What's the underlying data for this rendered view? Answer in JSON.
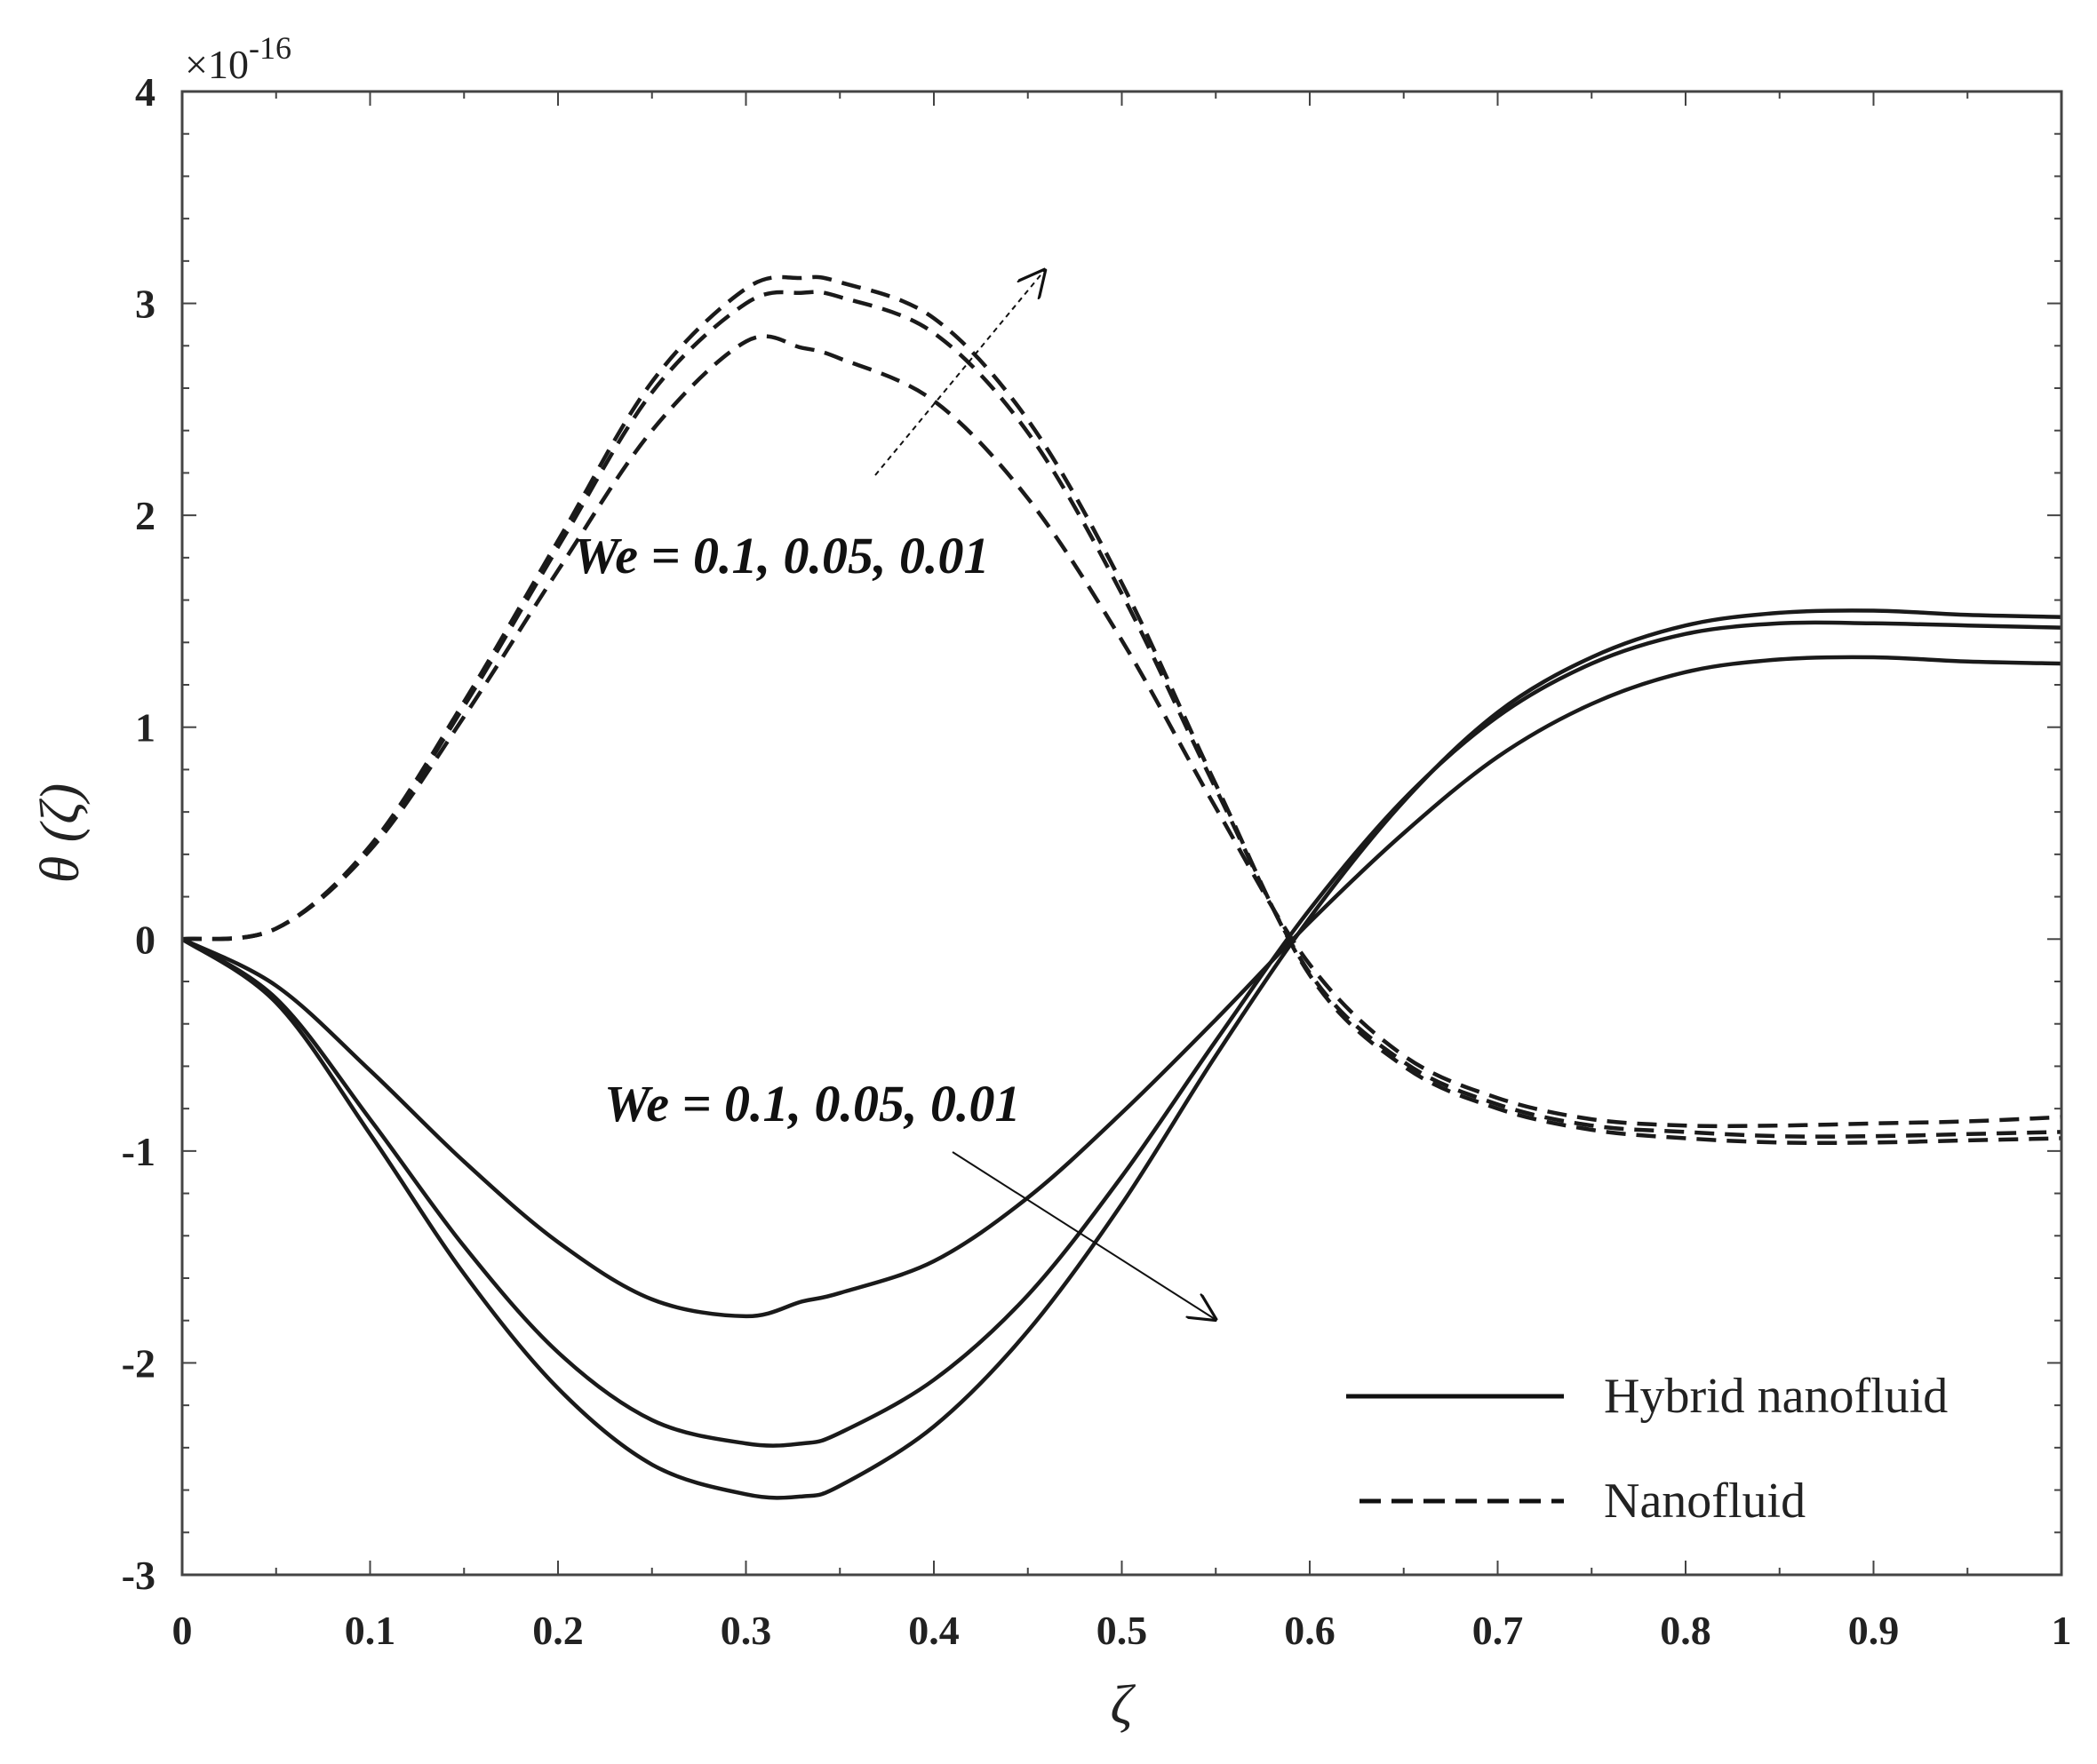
{
  "chart_data": {
    "type": "line",
    "title": "",
    "xlabel": "ζ",
    "ylabel": "θ (ζ)",
    "y_multiplier_label": "×10",
    "y_multiplier_exponent": "-16",
    "xlim": [
      0,
      1
    ],
    "ylim": [
      -3,
      4
    ],
    "xticks": [
      "0",
      "0.1",
      "0.2",
      "0.3",
      "0.4",
      "0.5",
      "0.6",
      "0.7",
      "0.8",
      "0.9",
      "1"
    ],
    "yticks": [
      "-3",
      "-2",
      "-1",
      "0",
      "1",
      "2",
      "3",
      "4"
    ],
    "x": [
      0,
      0.05,
      0.1,
      0.15,
      0.2,
      0.25,
      0.3,
      0.33,
      0.35,
      0.4,
      0.45,
      0.5,
      0.55,
      0.6,
      0.65,
      0.7,
      0.75,
      0.8,
      0.85,
      0.9,
      0.95,
      1.0
    ],
    "series": [
      {
        "name": "Hybrid nanofluid, We = 0.1",
        "style": "solid",
        "values": [
          0,
          -0.22,
          -0.62,
          -1.05,
          -1.43,
          -1.7,
          -1.78,
          -1.71,
          -1.67,
          -1.52,
          -1.22,
          -0.82,
          -0.38,
          0.08,
          0.5,
          0.86,
          1.11,
          1.26,
          1.32,
          1.33,
          1.31,
          1.3
        ]
      },
      {
        "name": "Hybrid nanofluid, We = 0.05",
        "style": "solid",
        "values": [
          0,
          -0.28,
          -0.85,
          -1.45,
          -1.95,
          -2.27,
          -2.38,
          -2.38,
          -2.33,
          -2.08,
          -1.68,
          -1.12,
          -0.48,
          0.14,
          0.66,
          1.05,
          1.3,
          1.44,
          1.49,
          1.49,
          1.48,
          1.47
        ]
      },
      {
        "name": "Hybrid nanofluid, We = 0.01",
        "style": "solid",
        "values": [
          0,
          -0.3,
          -0.92,
          -1.58,
          -2.12,
          -2.48,
          -2.62,
          -2.63,
          -2.58,
          -2.3,
          -1.85,
          -1.25,
          -0.55,
          0.1,
          0.65,
          1.07,
          1.33,
          1.48,
          1.54,
          1.55,
          1.53,
          1.52
        ]
      },
      {
        "name": "Nanofluid, We = 0.1",
        "style": "dashed",
        "values": [
          0,
          0.05,
          0.42,
          1.05,
          1.74,
          2.4,
          2.82,
          2.79,
          2.74,
          2.54,
          2.08,
          1.41,
          0.62,
          -0.12,
          -0.55,
          -0.75,
          -0.85,
          -0.88,
          -0.88,
          -0.87,
          -0.86,
          -0.84
        ]
      },
      {
        "name": "Nanofluid, We = 0.05",
        "style": "dashed",
        "values": [
          0,
          0.05,
          0.43,
          1.1,
          1.85,
          2.58,
          3.0,
          3.05,
          3.03,
          2.86,
          2.39,
          1.63,
          0.71,
          -0.16,
          -0.58,
          -0.78,
          -0.88,
          -0.91,
          -0.93,
          -0.93,
          -0.92,
          -0.91
        ]
      },
      {
        "name": "Nanofluid, We = 0.01",
        "style": "dashed",
        "values": [
          0,
          0.05,
          0.44,
          1.12,
          1.88,
          2.63,
          3.07,
          3.12,
          3.1,
          2.93,
          2.45,
          1.68,
          0.73,
          -0.17,
          -0.6,
          -0.8,
          -0.9,
          -0.94,
          -0.96,
          -0.96,
          -0.95,
          -0.94
        ]
      }
    ],
    "annotations": [
      {
        "text": "We = 0.1, 0.05, 0.01",
        "target": "Nanofluid"
      },
      {
        "text": "We = 0.1, 0.05, 0.01",
        "target": "Hybrid nanofluid"
      }
    ],
    "legend": {
      "position": "bottom-right",
      "entries": [
        {
          "label": "Hybrid nanofluid",
          "style": "solid"
        },
        {
          "label": "Nanofluid",
          "style": "dashed"
        }
      ]
    }
  }
}
